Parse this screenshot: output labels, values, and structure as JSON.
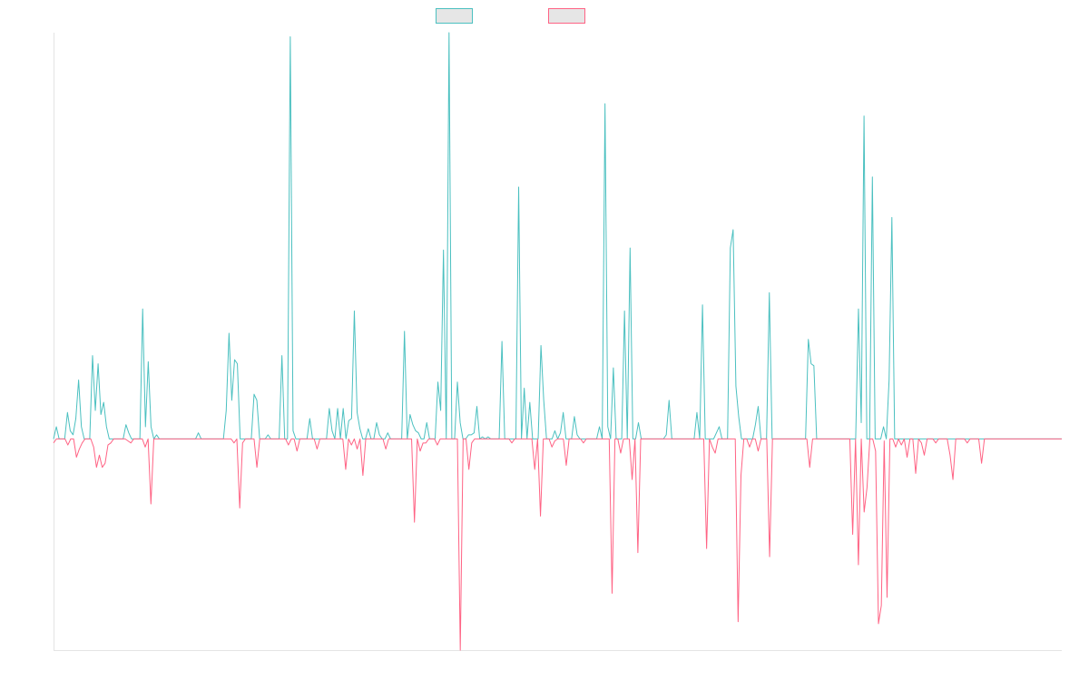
{
  "chart_data": {
    "type": "line",
    "title": "",
    "xlabel": "",
    "ylabel": "",
    "legend": "top-center",
    "grid": false,
    "ylim": [
      -0.52,
      1.0
    ],
    "series": [
      {
        "color": "#4bc0c0",
        "fill": "#e6e6e6",
        "values": [
          0.0,
          0.03,
          0.0,
          0.0,
          0.0,
          0.065,
          0.02,
          0.01,
          0.05,
          0.145,
          0.03,
          0.0,
          0.0,
          0.0,
          0.205,
          0.07,
          0.185,
          0.06,
          0.09,
          0.03,
          0.0,
          0.0,
          0.0,
          0.0,
          0.0,
          0.0,
          0.035,
          0.015,
          0.0,
          0.0,
          0.0,
          0.0,
          0.32,
          0.03,
          0.19,
          0.03,
          0.0,
          0.01,
          0.0,
          0.0,
          0.0,
          0.0,
          0.0,
          0.0,
          0.0,
          0.0,
          0.0,
          0.0,
          0.0,
          0.0,
          0.0,
          0.0,
          0.015,
          0.0,
          0.0,
          0.0,
          0.0,
          0.0,
          0.0,
          0.0,
          0.0,
          0.0,
          0.07,
          0.26,
          0.095,
          0.195,
          0.185,
          0.0,
          0.0,
          0.0,
          0.0,
          0.0,
          0.11,
          0.095,
          0.0,
          0.0,
          0.0,
          0.01,
          0.0,
          0.0,
          0.0,
          0.0,
          0.205,
          0.0,
          0.0,
          0.99,
          0.02,
          0.0,
          0.0,
          0.0,
          0.0,
          0.0,
          0.05,
          0.0,
          0.0,
          0.0,
          0.0,
          0.0,
          0.0,
          0.075,
          0.02,
          0.0,
          0.075,
          0.0,
          0.075,
          0.0,
          0.045,
          0.05,
          0.315,
          0.065,
          0.025,
          0.0,
          0.0,
          0.025,
          0.0,
          0.0,
          0.04,
          0.01,
          0.0,
          0.0,
          0.015,
          0.0,
          0.0,
          0.0,
          0.0,
          0.0,
          0.265,
          0.0,
          0.06,
          0.035,
          0.02,
          0.015,
          0.0,
          0.0,
          0.04,
          0.0,
          0.0,
          0.0,
          0.14,
          0.07,
          0.465,
          0.0,
          1.0,
          0.0,
          0.0,
          0.14,
          0.04,
          0.0,
          0.0,
          0.01,
          0.01,
          0.015,
          0.08,
          0.0,
          0.005,
          0.0,
          0.005,
          0.0,
          0.0,
          0.0,
          0.0,
          0.24,
          0.0,
          0.0,
          0.0,
          0.0,
          0.0,
          0.62,
          0.0,
          0.125,
          0.0,
          0.09,
          0.0,
          0.0,
          0.0,
          0.23,
          0.095,
          0.0,
          0.0,
          0.0,
          0.02,
          0.0,
          0.015,
          0.065,
          0.0,
          0.0,
          0.0,
          0.055,
          0.01,
          0.0,
          0.0,
          0.0,
          0.0,
          0.0,
          0.0,
          0.0,
          0.03,
          0.0,
          0.825,
          0.03,
          0.0,
          0.175,
          0.0,
          0.0,
          0.0,
          0.315,
          0.0,
          0.47,
          0.0,
          0.0,
          0.04,
          0.0,
          0.0,
          0.0,
          0.0,
          0.0,
          0.0,
          0.0,
          0.0,
          0.0,
          0.01,
          0.095,
          0.0,
          0.0,
          0.0,
          0.0,
          0.0,
          0.0,
          0.0,
          0.0,
          0.0,
          0.065,
          0.0,
          0.33,
          0.0,
          0.0,
          0.0,
          0.0,
          0.015,
          0.03,
          0.0,
          0.0,
          0.0,
          0.47,
          0.515,
          0.13,
          0.055,
          0.0,
          0.0,
          0.0,
          0.0,
          0.0,
          0.035,
          0.08,
          0.0,
          0.0,
          0.0,
          0.36,
          0.0,
          0.0,
          0.0,
          0.0,
          0.0,
          0.0,
          0.0,
          0.0,
          0.0,
          0.0,
          0.0,
          0.0,
          0.0,
          0.245,
          0.185,
          0.18,
          0.0,
          0.0,
          0.0,
          0.0,
          0.0,
          0.0,
          0.0,
          0.0,
          0.0,
          0.0,
          0.0,
          0.0,
          0.0,
          0.0,
          0.0,
          0.32,
          0.04,
          0.795,
          0.0,
          0.0,
          0.645,
          0.0,
          0.0,
          0.0,
          0.03,
          0.0,
          0.145,
          0.545,
          0.0,
          0.0,
          0.0,
          0.0,
          0.0,
          0.0,
          0.0,
          0.0,
          0.0,
          0.0,
          0.0,
          0.0,
          0.0,
          0.0,
          0.0,
          0.0,
          0.0,
          0.0,
          0.0,
          0.0,
          0.0,
          0.0,
          0.0,
          0.0,
          0.0,
          0.0,
          0.0,
          0.0,
          0.0,
          0.0,
          0.0,
          0.0,
          0.0,
          0.0,
          0.0,
          0.0,
          0.0,
          0.0,
          0.0,
          0.0,
          0.0,
          0.0,
          0.0,
          0.0,
          0.0,
          0.0,
          0.0,
          0.0,
          0.0,
          0.0,
          0.0,
          0.0,
          0.0,
          0.0,
          0.0,
          0.0,
          0.0,
          0.0,
          0.0,
          0.0,
          0.0
        ]
      },
      {
        "color": "#ff6384",
        "fill": "#e6e6e6",
        "values": [
          -0.01,
          0.0,
          0.0,
          0.0,
          0.0,
          -0.015,
          0.0,
          0.0,
          -0.045,
          -0.025,
          -0.01,
          0.0,
          0.0,
          0.0,
          -0.02,
          -0.07,
          -0.04,
          -0.07,
          -0.06,
          -0.015,
          -0.01,
          0.0,
          0.0,
          0.0,
          0.0,
          0.0,
          -0.005,
          -0.01,
          0.0,
          0.0,
          0.0,
          0.0,
          -0.02,
          0.0,
          -0.16,
          0.0,
          0.0,
          0.0,
          0.0,
          0.0,
          0.0,
          0.0,
          0.0,
          0.0,
          0.0,
          0.0,
          0.0,
          0.0,
          0.0,
          0.0,
          0.0,
          0.0,
          0.0,
          0.0,
          0.0,
          0.0,
          0.0,
          0.0,
          0.0,
          0.0,
          0.0,
          0.0,
          0.0,
          -0.01,
          0.0,
          -0.17,
          -0.01,
          0.0,
          0.0,
          0.0,
          0.0,
          -0.07,
          0.0,
          0.0,
          0.0,
          0.0,
          0.0,
          0.0,
          0.0,
          0.0,
          0.0,
          0.0,
          -0.015,
          0.0,
          0.0,
          -0.03,
          0.0,
          0.0,
          0.0,
          0.0,
          0.0,
          0.0,
          -0.025,
          0.0,
          0.0,
          0.0,
          0.0,
          0.0,
          0.0,
          0.0,
          0.0,
          0.0,
          -0.075,
          0.0,
          -0.015,
          0.0,
          -0.025,
          0.0,
          -0.09,
          0.0,
          0.0,
          0.0,
          0.0,
          0.0,
          0.0,
          0.0,
          -0.025,
          0.0,
          0.0,
          0.0,
          0.0,
          0.0,
          0.0,
          0.0,
          0.0,
          0.0,
          -0.205,
          0.0,
          -0.03,
          -0.01,
          -0.01,
          0.0,
          0.0,
          0.0,
          -0.015,
          0.0,
          0.0,
          0.0,
          0.0,
          0.0,
          0.0,
          0.0,
          -0.52,
          0.0,
          0.0,
          -0.075,
          -0.01,
          0.0,
          0.0,
          0.0,
          0.0,
          0.0,
          0.0,
          0.0,
          0.0,
          0.0,
          0.0,
          0.0,
          0.0,
          0.0,
          -0.01,
          0.0,
          0.0,
          0.0,
          0.0,
          0.0,
          0.0,
          0.0,
          -0.075,
          0.0,
          -0.19,
          0.0,
          0.0,
          0.0,
          -0.02,
          -0.005,
          0.0,
          0.0,
          0.0,
          -0.065,
          0.0,
          0.0,
          0.0,
          0.0,
          0.0,
          -0.01,
          0.0,
          0.0,
          0.0,
          0.0,
          0.0,
          0.0,
          0.0,
          0.0,
          0.0,
          -0.38,
          0.0,
          0.0,
          -0.035,
          0.0,
          0.0,
          0.0,
          -0.1,
          0.0,
          -0.28,
          0.0,
          0.0,
          0.0,
          0.0,
          0.0,
          0.0,
          0.0,
          0.0,
          0.0,
          0.0,
          0.0,
          0.0,
          0.0,
          0.0,
          0.0,
          0.0,
          0.0,
          0.0,
          0.0,
          0.0,
          0.0,
          0.0,
          0.0,
          -0.27,
          0.0,
          -0.02,
          -0.035,
          0.0,
          0.0,
          0.0,
          0.0,
          0.0,
          0.0,
          0.0,
          -0.45,
          -0.09,
          0.0,
          0.0,
          -0.02,
          0.0,
          0.0,
          -0.03,
          0.0,
          0.0,
          0.0,
          -0.29,
          0.0,
          0.0,
          0.0,
          0.0,
          0.0,
          0.0,
          0.0,
          0.0,
          0.0,
          0.0,
          0.0,
          0.0,
          0.0,
          -0.07,
          0.0,
          0.0,
          0.0,
          0.0,
          0.0,
          0.0,
          0.0,
          0.0,
          0.0,
          0.0,
          0.0,
          0.0,
          0.0,
          0.0,
          -0.235,
          0.0,
          -0.31,
          0.0,
          -0.18,
          -0.12,
          0.0,
          0.0,
          -0.03,
          -0.455,
          -0.41,
          -0.005,
          -0.39,
          0.0,
          0.0,
          -0.02,
          0.0,
          -0.015,
          0.0,
          -0.045,
          0.0,
          0.0,
          -0.085,
          0.0,
          -0.01,
          -0.04,
          0.0,
          0.0,
          0.0,
          -0.01,
          0.0,
          0.0,
          0.0,
          0.0,
          -0.04,
          -0.1,
          0.0,
          0.0,
          0.0,
          0.0,
          -0.01,
          0.0,
          0.0,
          0.0,
          0.0,
          -0.06,
          0.0,
          0.0,
          0.0,
          0.0,
          0.0,
          0.0,
          0.0,
          0.0,
          0.0,
          0.0,
          0.0,
          0.0,
          0.0,
          0.0,
          0.0,
          0.0,
          0.0,
          0.0,
          0.0,
          0.0,
          0.0,
          0.0,
          0.0,
          0.0,
          0.0,
          0.0,
          0.0,
          0.0
        ]
      }
    ]
  }
}
